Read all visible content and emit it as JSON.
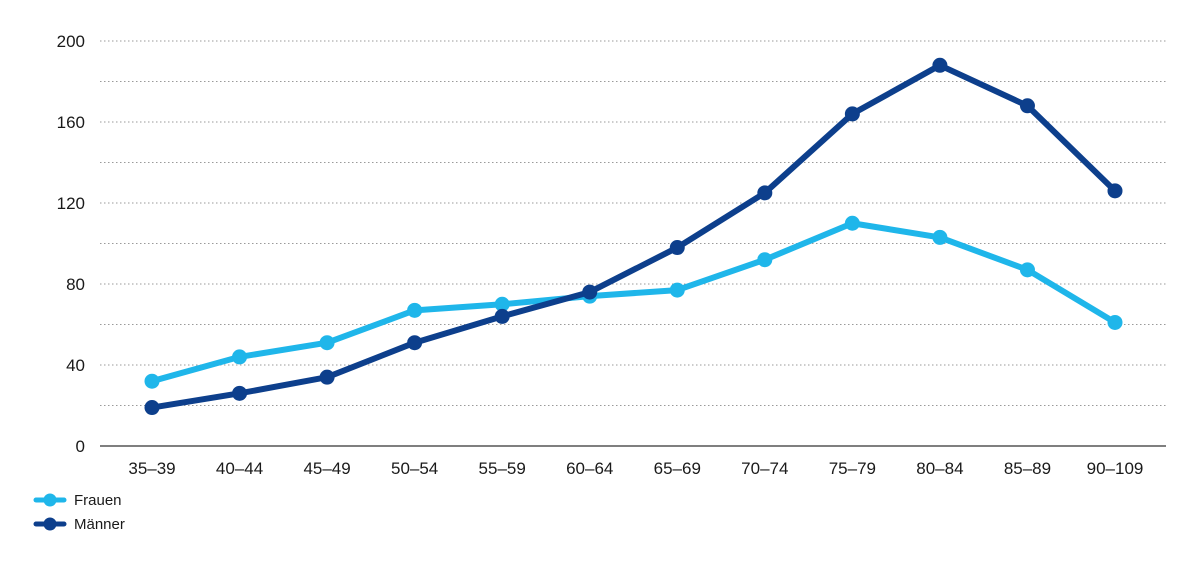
{
  "chart_data": {
    "type": "line",
    "categories": [
      "35–39",
      "40–44",
      "45–49",
      "50–54",
      "55–59",
      "60–64",
      "65–69",
      "70–74",
      "75–79",
      "80–84",
      "85–89",
      "90–109"
    ],
    "series": [
      {
        "name": "Frauen",
        "color": "#1fb6ea",
        "values": [
          32,
          44,
          51,
          67,
          70,
          74,
          77,
          92,
          110,
          103,
          87,
          61
        ]
      },
      {
        "name": "Männer",
        "color": "#0d3f8c",
        "values": [
          19,
          26,
          34,
          51,
          64,
          76,
          98,
          125,
          164,
          188,
          168,
          126
        ]
      }
    ],
    "y_ticks": [
      "0",
      "40",
      "80",
      "120",
      "160",
      "200"
    ],
    "ylim": [
      0,
      200
    ],
    "grid": true,
    "legend_placement": "bottom-left"
  }
}
